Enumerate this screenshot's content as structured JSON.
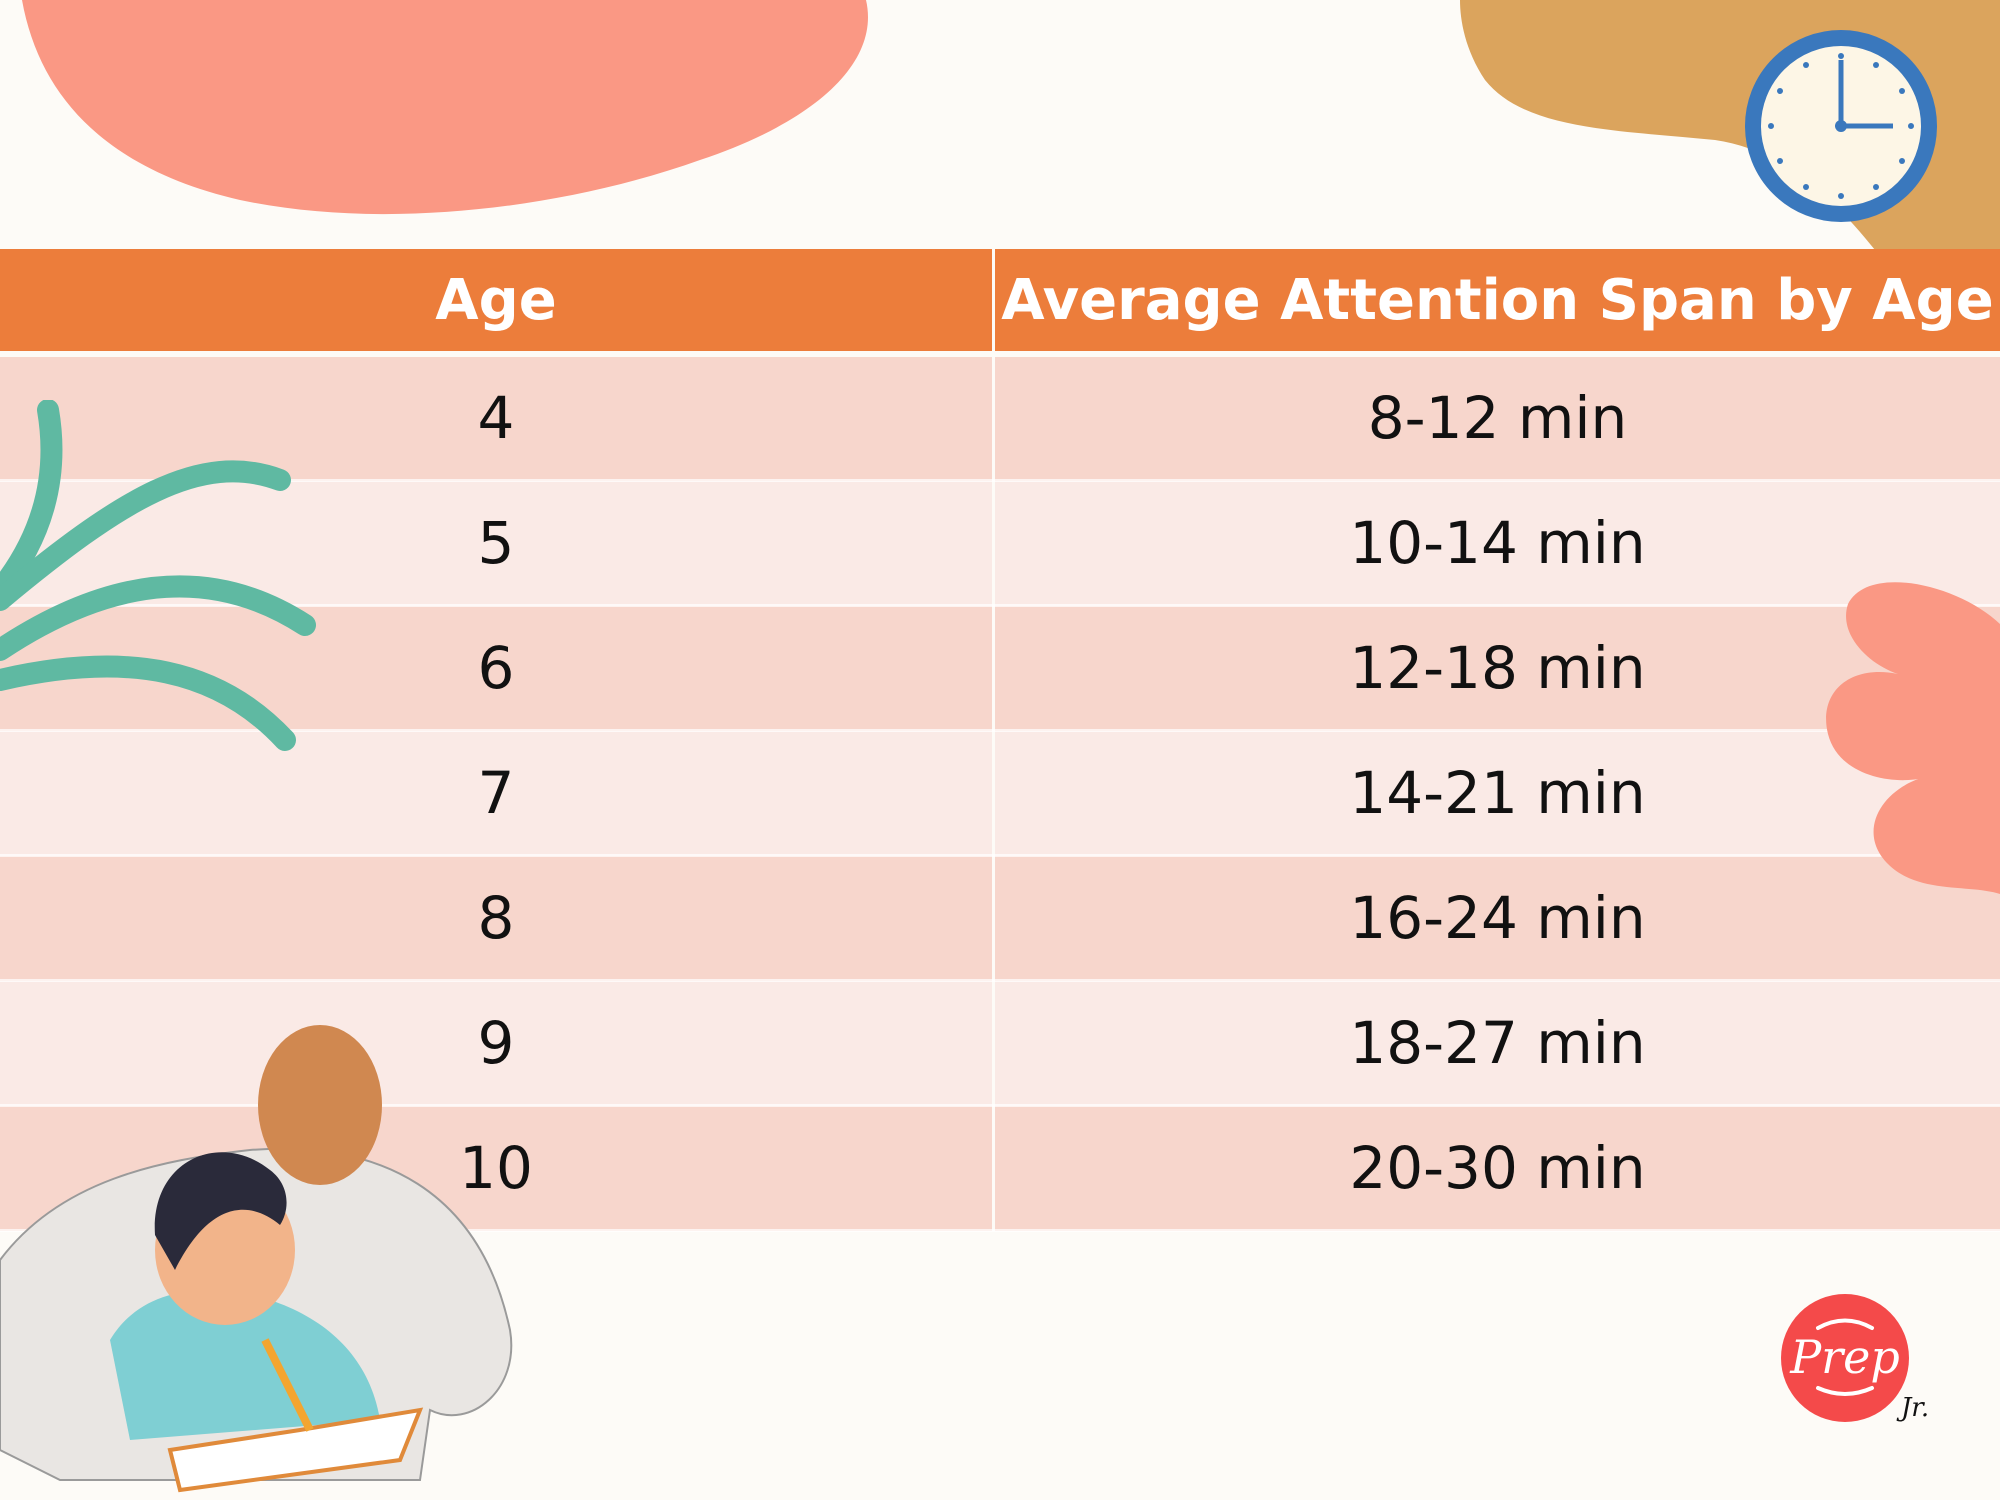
{
  "table": {
    "headers": [
      "Age",
      "Average Attention Span by Age"
    ],
    "rows": [
      {
        "age": "4",
        "span": "8-12 min"
      },
      {
        "age": "5",
        "span": "10-14 min"
      },
      {
        "age": "6",
        "span": "12-18 min"
      },
      {
        "age": "7",
        "span": "14-21 min"
      },
      {
        "age": "8",
        "span": "16-24 min"
      },
      {
        "age": "9",
        "span": "18-27 min"
      },
      {
        "age": "10",
        "span": "20-30 min"
      }
    ]
  },
  "logo": {
    "text": "Prep",
    "suffix": "Jr."
  },
  "colors": {
    "header": "#ec7d3b",
    "row_dark": "#f6d2c8",
    "row_light": "#fae8e4",
    "salmon": "#fa9884",
    "tan": "#dba45d",
    "clock_blue": "#3a78bd",
    "leaf": "#5fb9a2",
    "logo_red": "#f44a4a"
  }
}
